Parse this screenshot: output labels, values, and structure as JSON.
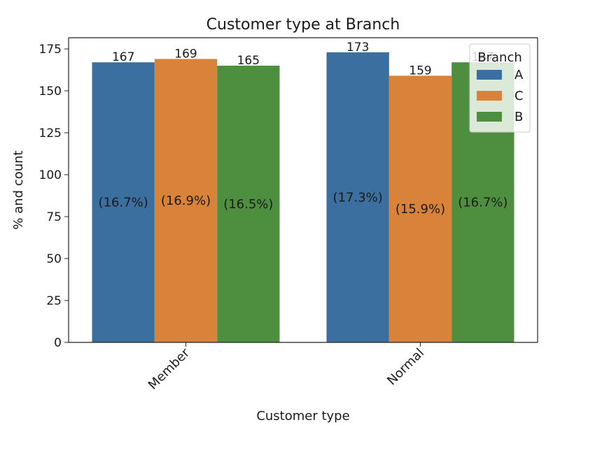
{
  "chart_data": {
    "type": "bar",
    "title": "Customer type at Branch",
    "xlabel": "Customer type",
    "ylabel": "% and count",
    "categories": [
      "Member",
      "Normal"
    ],
    "ylim": [
      0,
      180
    ],
    "yticks": [
      0,
      25,
      50,
      75,
      100,
      125,
      150,
      175
    ],
    "grid": false,
    "legend": {
      "title": "Branch",
      "placement": "top-right"
    },
    "series": [
      {
        "name": "A",
        "color": "#3a6f9f",
        "values": [
          167,
          173
        ],
        "pct_labels": [
          "(16.7%)",
          "(17.3%)"
        ]
      },
      {
        "name": "C",
        "color": "#d9833a",
        "values": [
          169,
          159
        ],
        "pct_labels": [
          "(16.9%)",
          "(15.9%)"
        ]
      },
      {
        "name": "B",
        "color": "#4e8f3f",
        "values": [
          165,
          167
        ],
        "pct_labels": [
          "(16.5%)",
          "(16.7%)"
        ]
      }
    ]
  }
}
